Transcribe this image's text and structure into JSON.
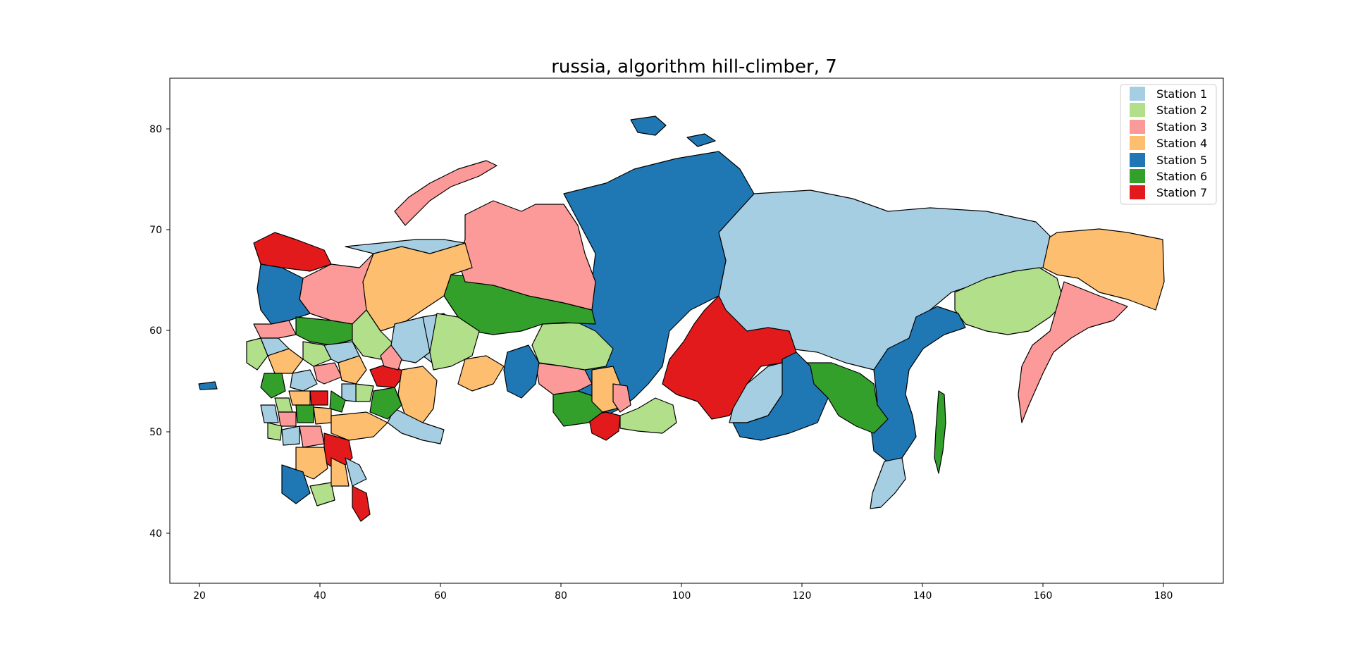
{
  "map": {
    "title": "russia, algorithm hill-climber, 7",
    "x_ticks": [
      "20",
      "40",
      "60",
      "80",
      "100",
      "120",
      "140",
      "160",
      "180"
    ],
    "y_ticks": [
      "40",
      "50",
      "60",
      "70",
      "80"
    ],
    "legend": [
      {
        "label": "Station 1",
        "color": "#a6cee3"
      },
      {
        "label": "Station 2",
        "color": "#b2df8a"
      },
      {
        "label": "Station 3",
        "color": "#fb9a99"
      },
      {
        "label": "Station 4",
        "color": "#fdbf6f"
      },
      {
        "label": "Station 5",
        "color": "#1f78b4"
      },
      {
        "label": "Station 6",
        "color": "#33a02c"
      },
      {
        "label": "Station 7",
        "color": "#e31a1c"
      }
    ]
  }
}
